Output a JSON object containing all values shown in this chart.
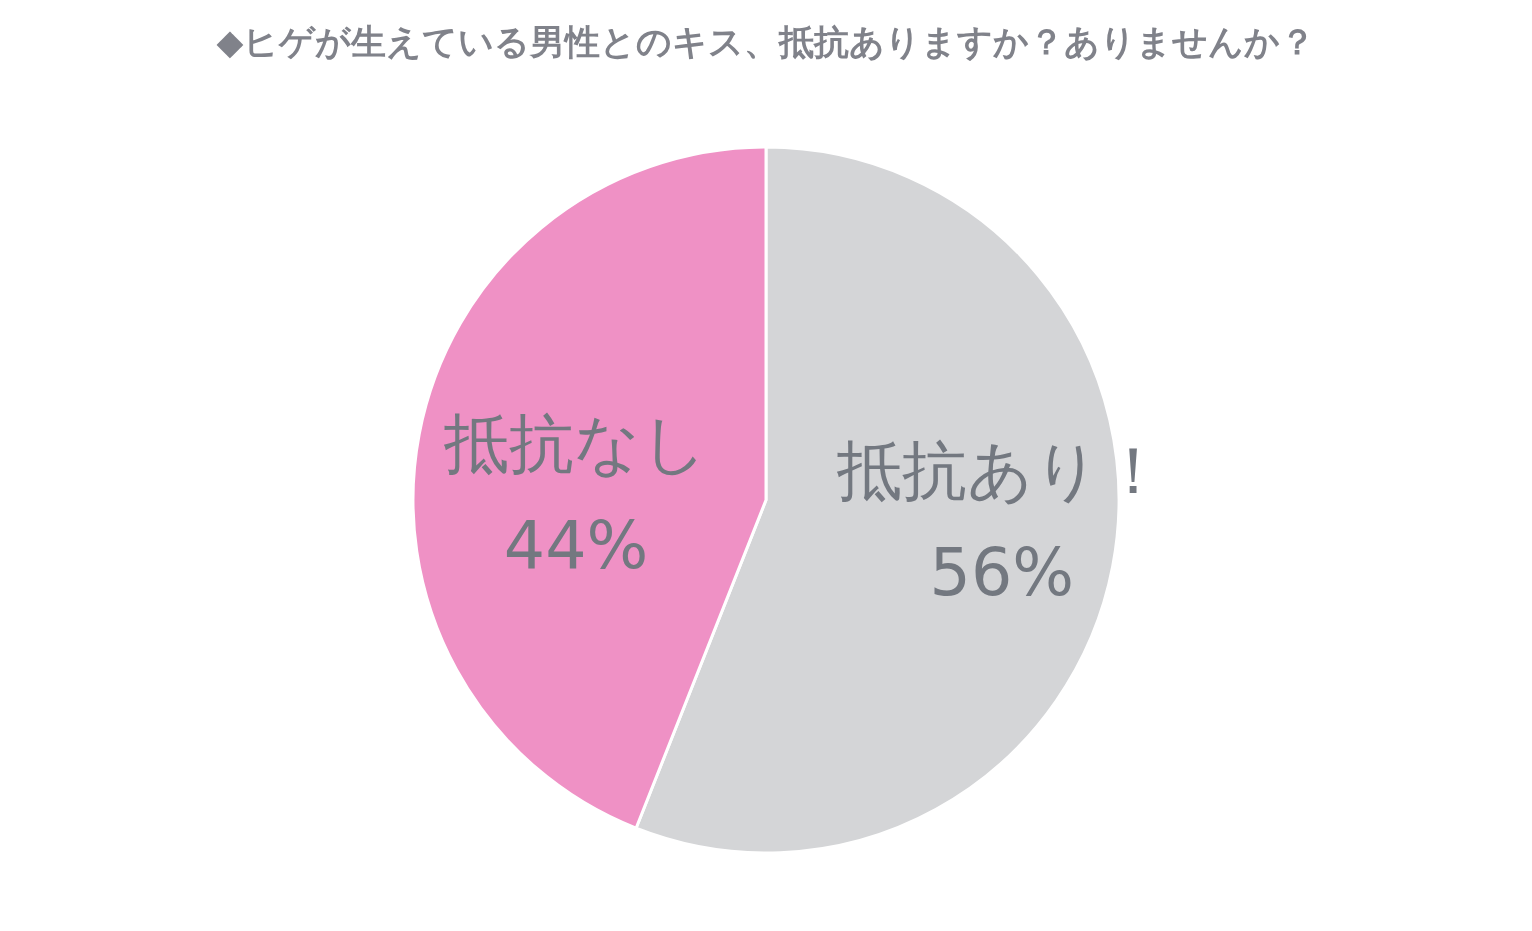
{
  "chart_data": {
    "type": "pie",
    "title": "◆ヒゲが生えている男性とのキス、抵抗ありますか？ありませんか？",
    "categories": [
      "抵抗あり！",
      "抵抗なし"
    ],
    "values": [
      56,
      44
    ],
    "colors": [
      "#d4d5d7",
      "#ef91c5"
    ],
    "value_labels": [
      "56%",
      "44%"
    ]
  }
}
